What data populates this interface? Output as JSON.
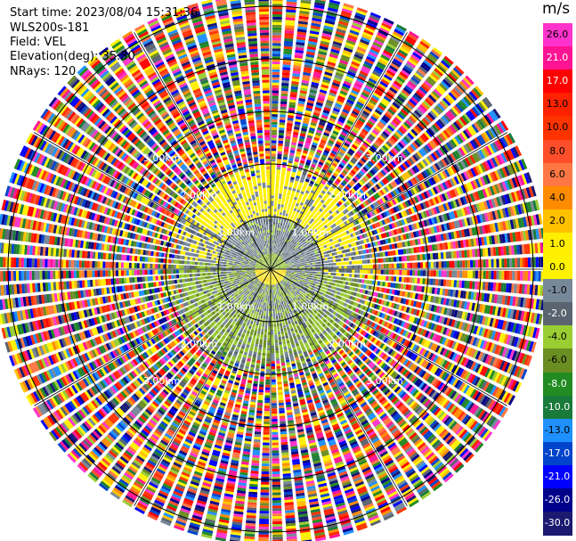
{
  "header": {
    "start_time": "Start time: 2023/08/04 15:31:36",
    "instrument": "WLS200s-181",
    "field": "Field: VEL",
    "elevation": "Elevation(deg): 35.30",
    "nrays": "NRays: 120"
  },
  "chart_data": {
    "type": "heatmap",
    "projection": "polar-ppi",
    "field": "VEL",
    "units": "m/s",
    "rays": 120,
    "range_ring_labels": [
      "1.00km",
      "2.00km",
      "3.00km"
    ],
    "colorbar": {
      "unit_label": "m/s",
      "ticks": [
        "26.0",
        "21.0",
        "17.0",
        "13.0",
        "10.0",
        "8.0",
        "6.0",
        "4.0",
        "2.0",
        "1.0",
        "0.0",
        "-1.0",
        "-2.0",
        "-4.0",
        "-6.0",
        "-8.0",
        "-10.0",
        "-13.0",
        "-17.0",
        "-21.0",
        "-26.0",
        "-30.0"
      ],
      "colors": [
        "#ff33cc",
        "#ff1493",
        "#ff0000",
        "#ff2200",
        "#ff3300",
        "#ff4f2a",
        "#ff7744",
        "#ff8c00",
        "#ffc000",
        "#ffee00",
        "#fff200",
        "#778899",
        "#5a6470",
        "#9acd32",
        "#6b8e23",
        "#228b22",
        "#1a7a3a",
        "#1e90ff",
        "#0044cc",
        "#0000ff",
        "#00008b",
        "#1a1a70"
      ]
    },
    "structure": [
      {
        "range_km": [
          0.0,
          0.3
        ],
        "dominant": [
          "yellow",
          "green"
        ]
      },
      {
        "range_km": [
          0.3,
          1.0
        ],
        "dominant": [
          "gray",
          "green"
        ]
      },
      {
        "range_km": [
          1.0,
          2.0
        ],
        "dominant": [
          "yellow",
          "gray",
          "green"
        ]
      },
      {
        "range_km": [
          2.0,
          4.0
        ],
        "dominant": [
          "noise"
        ]
      }
    ]
  }
}
